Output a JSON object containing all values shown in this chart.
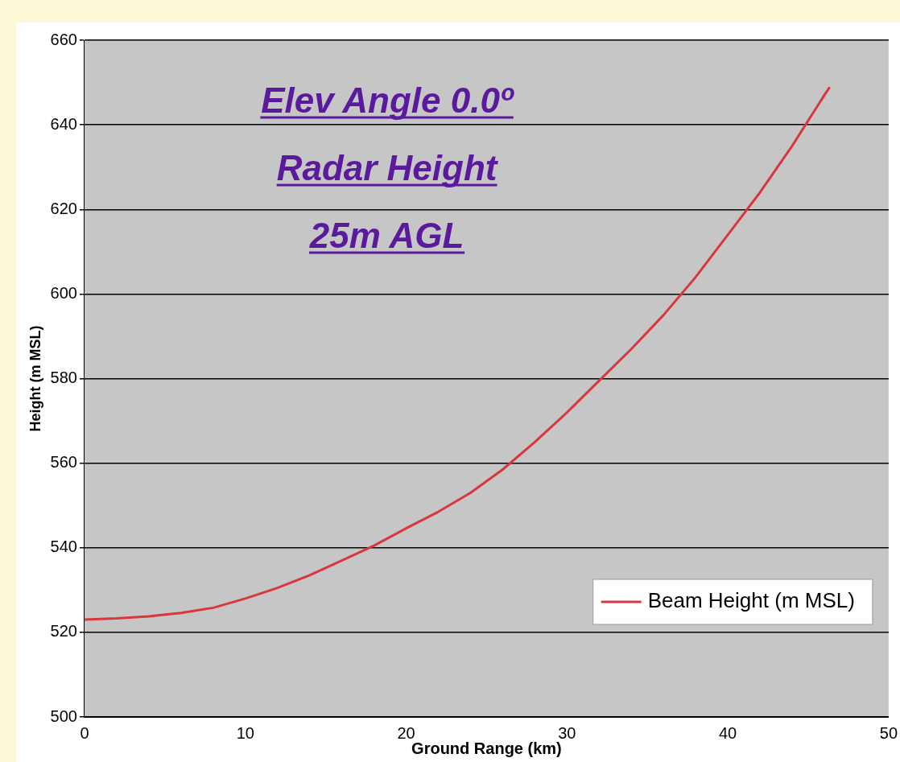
{
  "chart_data": {
    "type": "line",
    "xlabel": "Ground Range (km)",
    "ylabel": "Height (m MSL)",
    "annotations": [
      "Elev Angle 0.0º",
      "Radar Height",
      "25m AGL"
    ],
    "xlim": [
      0,
      50
    ],
    "xticks": [
      0,
      10,
      20,
      30,
      40,
      50
    ],
    "ylim": [
      500,
      660
    ],
    "yticks": [
      500,
      520,
      540,
      560,
      580,
      600,
      620,
      640,
      660
    ],
    "grid": "y",
    "legend": "bottom right",
    "marker": "none",
    "line_style": "solid",
    "series": [
      {
        "name": "Beam Height (m MSL)",
        "color": "#d9363e",
        "x": [
          0,
          2,
          4,
          6,
          8,
          10,
          12,
          14,
          16,
          18,
          20,
          22,
          24,
          26,
          28,
          30,
          32,
          34,
          36,
          38,
          40,
          42,
          44,
          46,
          46.3
        ],
        "values": [
          523,
          523.3,
          523.8,
          524.6,
          525.8,
          528,
          530.5,
          533.5,
          537,
          540.5,
          544.6,
          548.5,
          553,
          558.5,
          565,
          572,
          579.5,
          587,
          595,
          604,
          614,
          624,
          635,
          647,
          648.7
        ]
      }
    ]
  }
}
